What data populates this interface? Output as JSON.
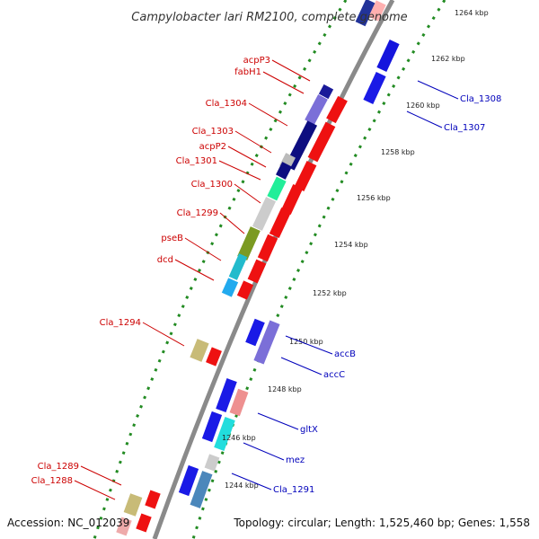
{
  "title": "Campylobacter lari RM2100, complete genome",
  "footer": {
    "accession": "Accession: NC_012039",
    "topology": "Topology: circular; Length: 1,525,460 bp; Genes: 1,558"
  },
  "colors": {
    "forward_label": "#cc0000",
    "reverse_label": "#0000bb",
    "backbone": "#8a8a8a",
    "ticks": "#228b22"
  },
  "kbp_ticks": [
    "1244 kbp",
    "1246 kbp",
    "1248 kbp",
    "1250 kbp",
    "1252 kbp",
    "1254 kbp",
    "1256 kbp",
    "1258 kbp",
    "1260 kbp",
    "1262 kbp",
    "1264 kbp"
  ],
  "forward_labels": [
    "acpP3",
    "fabH1",
    "Cla_1304",
    "Cla_1303",
    "acpP2",
    "Cla_1301",
    "Cla_1300",
    "Cla_1299",
    "pseB",
    "dcd",
    "Cla_1294",
    "Cla_1289",
    "Cla_1288"
  ],
  "reverse_labels": [
    "Cla_1308",
    "Cla_1307",
    "accB",
    "accC",
    "gltX",
    "mez",
    "Cla_1291"
  ]
}
